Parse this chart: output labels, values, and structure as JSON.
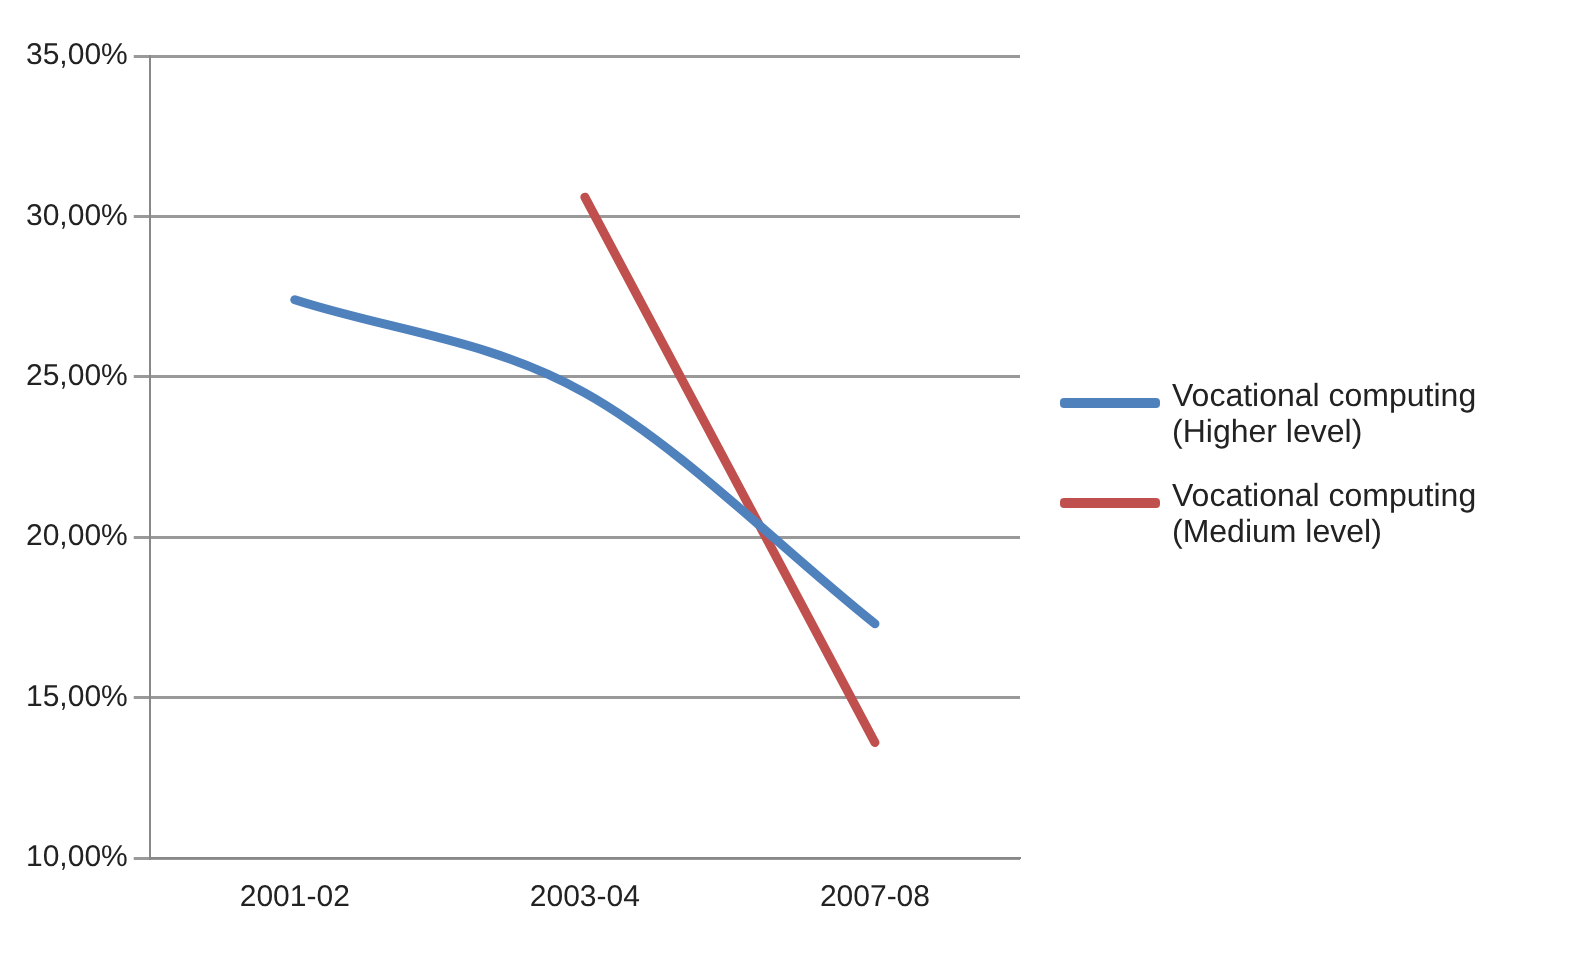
{
  "chart_data": {
    "type": "line",
    "categories": [
      "2001-02",
      "2003-04",
      "2007-08"
    ],
    "series": [
      {
        "name": "Vocational computing (Higher level)",
        "color": "#4f81bd",
        "values": [
          27.4,
          24.5,
          17.3
        ]
      },
      {
        "name": "Vocational computing (Medium level)",
        "color": "#c0504d",
        "values": [
          null,
          30.6,
          13.6
        ]
      }
    ],
    "ylim": [
      10,
      35
    ],
    "yticks": [
      {
        "value": 10,
        "label": "10,00%"
      },
      {
        "value": 15,
        "label": "15,00%"
      },
      {
        "value": 20,
        "label": "20,00%"
      },
      {
        "value": 25,
        "label": "25,00%"
      },
      {
        "value": 30,
        "label": "30,00%"
      },
      {
        "value": 35,
        "label": "35,00%"
      }
    ],
    "grid": "y",
    "legend": "right",
    "marker": "none"
  }
}
